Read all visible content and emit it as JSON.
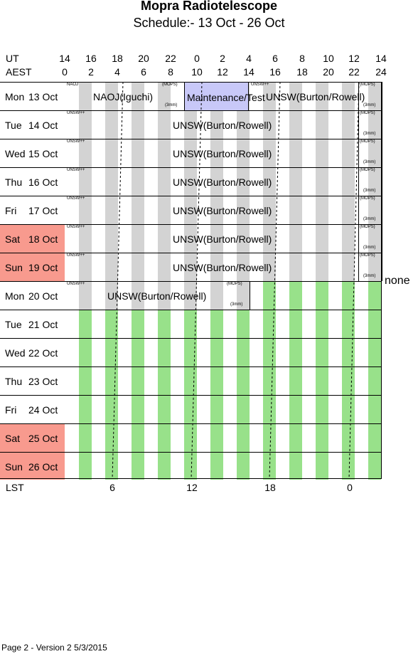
{
  "header": {
    "title": "Mopra Radiotelescope",
    "subtitle": "Schedule:- 13 Oct - 26 Oct",
    "ut_label": "UT",
    "aest_label": "AEST",
    "ut_ticks": [
      "14",
      "16",
      "18",
      "20",
      "22",
      "0",
      "2",
      "4",
      "6",
      "8",
      "10",
      "12",
      "14"
    ],
    "aest_ticks": [
      "0",
      "2",
      "4",
      "6",
      "8",
      "10",
      "12",
      "14",
      "16",
      "18",
      "20",
      "22",
      "24"
    ]
  },
  "days": [
    {
      "dow": "Mon",
      "date": "13 Oct"
    },
    {
      "dow": "Tue",
      "date": "14 Oct"
    },
    {
      "dow": "Wed",
      "date": "15 Oct"
    },
    {
      "dow": "Thu",
      "date": "16 Oct"
    },
    {
      "dow": "Fri",
      "date": "17 Oct"
    },
    {
      "dow": "Sat",
      "date": "18 Oct"
    },
    {
      "dow": "Sun",
      "date": "19 Oct"
    },
    {
      "dow": "Mon",
      "date": "20 Oct"
    },
    {
      "dow": "Tue",
      "date": "21 Oct"
    },
    {
      "dow": "Wed",
      "date": "22 Oct"
    },
    {
      "dow": "Thu",
      "date": "23 Oct"
    },
    {
      "dow": "Fri",
      "date": "24 Oct"
    },
    {
      "dow": "Sat",
      "date": "25 Oct"
    },
    {
      "dow": "Sun",
      "date": "26 Oct"
    }
  ],
  "blocks": {
    "naoj_tag": "NAOJ",
    "naoj_label": "NAOJ(Iguchi)",
    "mops_tag": "(MOPS)",
    "mm_tag": "(3mm)",
    "maint_label": "Maintenance/Test",
    "unsw_tag": "UNSW++",
    "unsw_label": "UNSW(Burton/Rowell)",
    "none_label": "none"
  },
  "lst": {
    "label": "LST",
    "ticks": [
      "6",
      "12",
      "18",
      "0"
    ]
  },
  "footer": "Page 2 - Version 2  5/3/2015"
}
